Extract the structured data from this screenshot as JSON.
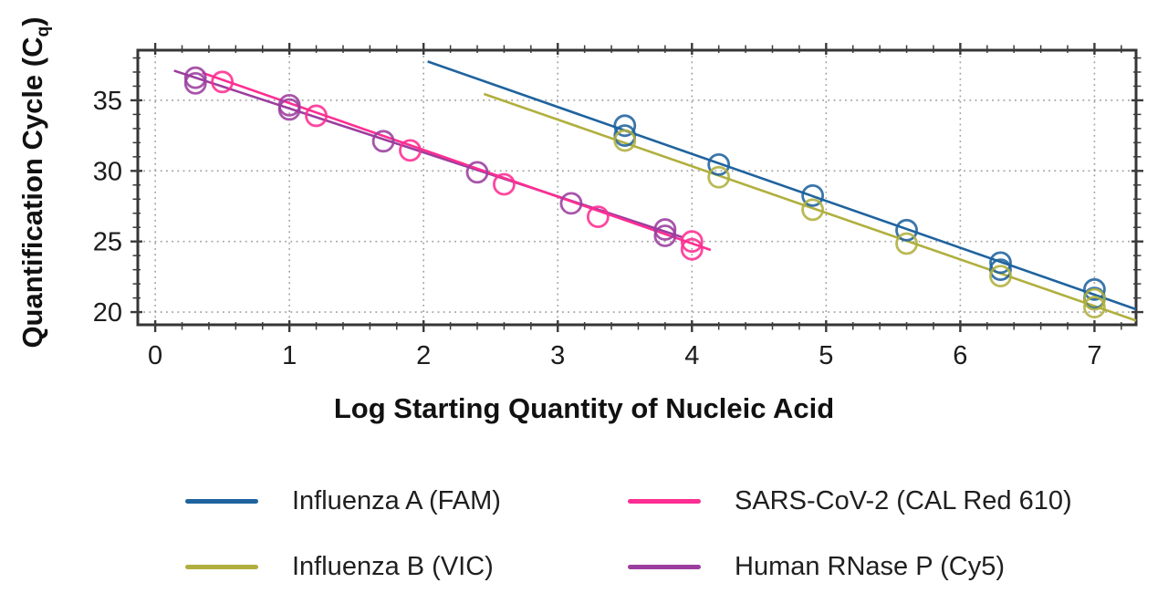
{
  "axes": {
    "y_title_main": "Quantification Cycle (C",
    "y_title_sub": "q",
    "y_title_close": ")",
    "x_title": "Log Starting Quantity of Nucleic Acid"
  },
  "chart_data": {
    "type": "scatter",
    "title": "",
    "xlabel": "Log Starting Quantity of Nucleic Acid",
    "ylabel": "Quantification Cycle (Cq)",
    "xlim": [
      -0.13,
      7.31
    ],
    "ylim": [
      19.1,
      38.55
    ],
    "x_major_ticks": [
      0,
      1,
      2,
      3,
      4,
      5,
      6,
      7
    ],
    "x_tick_labels": [
      "0",
      "1",
      "2",
      "3",
      "4",
      "5",
      "6",
      "7"
    ],
    "x_minor_step": 0.2,
    "y_major_ticks": [
      20,
      25,
      30,
      35
    ],
    "y_tick_labels": [
      "20",
      "25",
      "30",
      "35"
    ],
    "y_minor_step": 1,
    "grid": {
      "style": "dotted",
      "color": "#8f8f8f",
      "x_lines": "every integer",
      "y_lines": "every 5"
    },
    "frame_color": "#353535",
    "tick_color": "#3b3b3b",
    "tick_label_color": "#1c1c1c",
    "marker": {
      "shape": "open-circle",
      "radius": 11,
      "stroke_width": 2.8
    },
    "legend_position": "bottom, two columns",
    "series": [
      {
        "name": "Influenza A (FAM)",
        "color": "#1f639e",
        "points": [
          [
            3.5,
            33.2
          ],
          [
            3.5,
            32.5
          ],
          [
            4.2,
            30.45
          ],
          [
            4.9,
            28.25
          ],
          [
            5.6,
            25.8
          ],
          [
            6.3,
            23.5
          ],
          [
            6.3,
            23.0
          ],
          [
            7.0,
            21.6
          ],
          [
            7.0,
            21.0
          ]
        ],
        "trendline": [
          [
            2.03,
            37.75
          ],
          [
            7.31,
            20.2
          ]
        ]
      },
      {
        "name": "Influenza B (VIC)",
        "color": "#b0af3e",
        "points": [
          [
            3.5,
            32.15
          ],
          [
            4.2,
            29.55
          ],
          [
            4.9,
            27.25
          ],
          [
            5.6,
            24.85
          ],
          [
            6.3,
            22.55
          ],
          [
            7.0,
            20.9
          ],
          [
            7.0,
            20.35
          ]
        ],
        "trendline": [
          [
            2.45,
            35.45
          ],
          [
            7.31,
            19.4
          ]
        ]
      },
      {
        "name": "SARS-CoV-2 (CAL Red 610)",
        "color": "#fd2e92",
        "points": [
          [
            0.5,
            36.3
          ],
          [
            1.2,
            33.9
          ],
          [
            1.9,
            31.45
          ],
          [
            2.6,
            29.05
          ],
          [
            3.3,
            26.75
          ],
          [
            4.0,
            25.0
          ],
          [
            4.0,
            24.45
          ]
        ],
        "trendline": [
          [
            0.35,
            36.95
          ],
          [
            4.14,
            24.4
          ]
        ]
      },
      {
        "name": "Human RNase P (Cy5)",
        "color": "#9b3d9e",
        "points": [
          [
            0.3,
            36.6
          ],
          [
            0.3,
            36.2
          ],
          [
            1.0,
            34.65
          ],
          [
            1.0,
            34.35
          ],
          [
            1.7,
            32.1
          ],
          [
            2.4,
            29.9
          ],
          [
            3.1,
            27.7
          ],
          [
            3.8,
            25.85
          ],
          [
            3.8,
            25.4
          ]
        ],
        "trendline": [
          [
            0.14,
            37.1
          ],
          [
            3.93,
            25.3
          ]
        ]
      }
    ]
  }
}
